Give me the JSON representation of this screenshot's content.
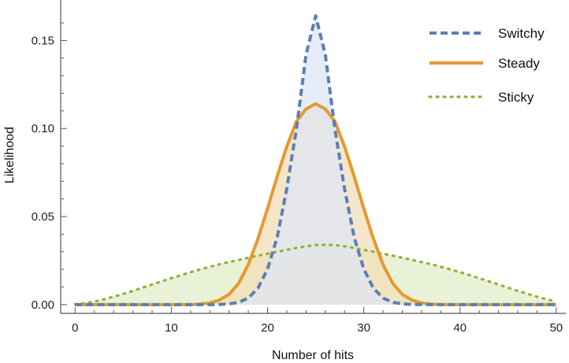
{
  "chart_data": {
    "type": "area",
    "xlabel": "Number of hits",
    "ylabel": "Likelihood",
    "xlim": [
      -1.5,
      51
    ],
    "ylim": [
      -0.005,
      0.173
    ],
    "x_ticks": [
      "0",
      "10",
      "20",
      "30",
      "40",
      "50"
    ],
    "y_ticks": [
      "0.00",
      "0.05",
      "0.10",
      "0.15"
    ],
    "legend_position": "top-right",
    "x": [
      0,
      1,
      2,
      3,
      4,
      5,
      6,
      7,
      8,
      9,
      10,
      11,
      12,
      13,
      14,
      15,
      16,
      17,
      18,
      19,
      20,
      21,
      22,
      23,
      24,
      25,
      26,
      27,
      28,
      29,
      30,
      31,
      32,
      33,
      34,
      35,
      36,
      37,
      38,
      39,
      40,
      41,
      42,
      43,
      44,
      45,
      46,
      47,
      48,
      49,
      50
    ],
    "series": [
      {
        "name": "Switchy",
        "line_style": "dashed",
        "color": "#5b7fb4",
        "fill": "#dde6f4",
        "values": [
          0,
          0,
          0,
          0,
          0,
          0,
          0,
          0,
          0,
          0,
          0,
          0,
          0,
          0,
          0,
          0.0001,
          0.0004,
          0.0013,
          0.0037,
          0.0093,
          0.0202,
          0.0383,
          0.0659,
          0.0998,
          0.142,
          0.164,
          0.142,
          0.0998,
          0.0659,
          0.0383,
          0.0202,
          0.0093,
          0.0037,
          0.0013,
          0.0004,
          0.0001,
          0,
          0,
          0,
          0,
          0,
          0,
          0,
          0,
          0,
          0,
          0,
          0,
          0,
          0,
          0
        ]
      },
      {
        "name": "Steady",
        "line_style": "solid",
        "color": "#e39a2e",
        "fill": "#f3ddb7",
        "values": [
          0,
          0,
          0,
          0,
          0,
          0,
          0,
          0,
          0,
          0,
          0,
          0,
          0,
          0.0003,
          0.0009,
          0.0026,
          0.0058,
          0.0121,
          0.0227,
          0.0374,
          0.0546,
          0.0728,
          0.0898,
          0.1041,
          0.1111,
          0.114,
          0.1111,
          0.1041,
          0.0898,
          0.0728,
          0.0546,
          0.0374,
          0.0227,
          0.0121,
          0.0058,
          0.0026,
          0.0009,
          0.0003,
          0,
          0,
          0,
          0,
          0,
          0,
          0,
          0,
          0,
          0,
          0,
          0,
          0
        ]
      },
      {
        "name": "Sticky",
        "line_style": "dotted",
        "color": "#8fb33a",
        "fill": "#e2ecc9",
        "values": [
          0.0002,
          0.0008,
          0.0017,
          0.003,
          0.0045,
          0.0061,
          0.0078,
          0.0096,
          0.0114,
          0.0132,
          0.015,
          0.0167,
          0.0184,
          0.02,
          0.0215,
          0.0229,
          0.0242,
          0.0254,
          0.0266,
          0.0278,
          0.0289,
          0.03,
          0.0311,
          0.0322,
          0.0331,
          0.0338,
          0.034,
          0.0338,
          0.0331,
          0.0322,
          0.0311,
          0.03,
          0.0289,
          0.0278,
          0.0266,
          0.0254,
          0.0242,
          0.0229,
          0.0215,
          0.02,
          0.0184,
          0.0167,
          0.015,
          0.0132,
          0.0114,
          0.0096,
          0.0078,
          0.0061,
          0.0045,
          0.003,
          0.0017
        ]
      }
    ]
  }
}
